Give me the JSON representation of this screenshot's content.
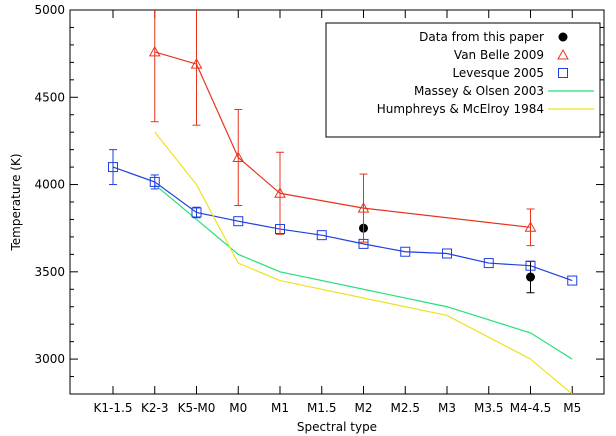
{
  "chart_data": {
    "type": "line",
    "xlabel": "Spectral type",
    "ylabel": "Temperature (K)",
    "ylim": [
      2800,
      5000
    ],
    "categories": [
      "K1-1.5",
      "K2-3",
      "K5-M0",
      "M0",
      "M1",
      "M1.5",
      "M2",
      "M2.5",
      "M3",
      "M3.5",
      "M4-4.5",
      "M5"
    ],
    "y_ticks": [
      3000,
      3500,
      4000,
      4500,
      5000
    ],
    "legend_position": "top-right",
    "series": [
      {
        "name": "Data from this paper",
        "style": "points",
        "marker": "filled-circle",
        "color": "#000000",
        "points": [
          {
            "x": "M2",
            "y": 3750,
            "err": 0
          },
          {
            "x": "M4-4.5",
            "y": 3470,
            "err": 90
          }
        ]
      },
      {
        "name": "Van Belle 2009",
        "style": "line-markers",
        "marker": "triangle",
        "color": "#e8341c",
        "points": [
          {
            "x": "K2-3",
            "y": 4760,
            "err": 400
          },
          {
            "x": "K5-M0",
            "y": 4690,
            "err": 350
          },
          {
            "x": "M0",
            "y": 4155,
            "err": 275
          },
          {
            "x": "M1",
            "y": 3950,
            "err": 235
          },
          {
            "x": "M2",
            "y": 3865,
            "err": 195
          },
          {
            "x": "M4-4.5",
            "y": 3755,
            "err": 105
          }
        ]
      },
      {
        "name": "Levesque 2005",
        "style": "line-markers",
        "marker": "square",
        "color": "#1f3fe0",
        "points": [
          {
            "x": "K1-1.5",
            "y": 4100,
            "err": 100
          },
          {
            "x": "K2-3",
            "y": 4015,
            "err": 40
          },
          {
            "x": "K5-M0",
            "y": 3840,
            "err": 30
          },
          {
            "x": "M0",
            "y": 3790,
            "err": 0
          },
          {
            "x": "M1",
            "y": 3745,
            "err": 0
          },
          {
            "x": "M1.5",
            "y": 3710,
            "err": 0
          },
          {
            "x": "M2",
            "y": 3660,
            "err": 0
          },
          {
            "x": "M2.5",
            "y": 3615,
            "err": 0
          },
          {
            "x": "M3",
            "y": 3605,
            "err": 0
          },
          {
            "x": "M3.5",
            "y": 3550,
            "err": 0
          },
          {
            "x": "M4-4.5",
            "y": 3535,
            "err": 0
          },
          {
            "x": "M5",
            "y": 3450,
            "err": 0
          }
        ]
      },
      {
        "name": "Massey & Olsen 2003",
        "style": "line",
        "color": "#22e07a",
        "points": [
          {
            "x": "K2-3",
            "y": 4000
          },
          {
            "x": "K5-M0",
            "y": 3800
          },
          {
            "x": "M0",
            "y": 3600
          },
          {
            "x": "M1",
            "y": 3500
          },
          {
            "x": "M3",
            "y": 3300
          },
          {
            "x": "M4-4.5",
            "y": 3150
          },
          {
            "x": "M5",
            "y": 3000
          }
        ]
      },
      {
        "name": "Humphreys & McElroy 1984",
        "style": "line",
        "color": "#f0e020",
        "points": [
          {
            "x": "K2-3",
            "y": 4300
          },
          {
            "x": "K5-M0",
            "y": 4000
          },
          {
            "x": "M0",
            "y": 3550
          },
          {
            "x": "M1",
            "y": 3450
          },
          {
            "x": "M3",
            "y": 3250
          },
          {
            "x": "M4-4.5",
            "y": 3000
          },
          {
            "x": "M5",
            "y": 2800
          }
        ]
      }
    ]
  }
}
